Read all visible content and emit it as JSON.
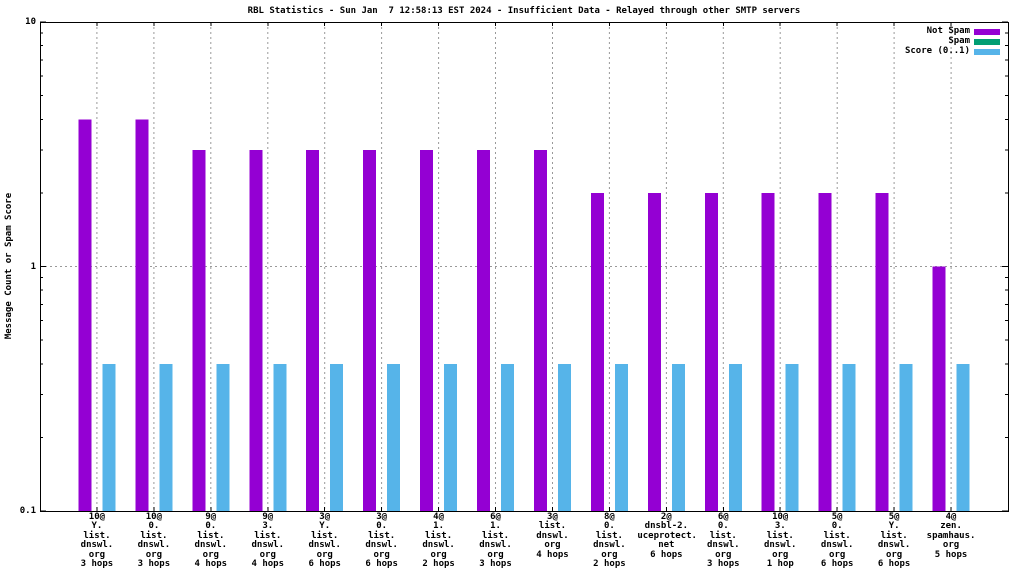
{
  "chart_data": {
    "type": "bar",
    "title": "RBL Statistics - Sun Jan  7 12:58:13 EST 2024 - Insufficient Data - Relayed through other SMTP servers",
    "ylabel": "Message Count or Spam Score",
    "xlabel": "",
    "yscale": "log",
    "ylim": [
      0.1,
      10
    ],
    "ytick_labels": [
      "0.1",
      "1",
      "10"
    ],
    "ytick_values": [
      0.1,
      1,
      10
    ],
    "grid": true,
    "grid_color": "#999999",
    "legend_position": "top-right-inside",
    "categories": [
      [
        "10@",
        "Y.",
        "list.",
        "dnswl.",
        "org",
        "3 hops"
      ],
      [
        "10@",
        "0.",
        "list.",
        "dnswl.",
        "org",
        "3 hops"
      ],
      [
        "9@",
        "0.",
        "list.",
        "dnswl.",
        "org",
        "4 hops"
      ],
      [
        "9@",
        "3.",
        "list.",
        "dnswl.",
        "org",
        "4 hops"
      ],
      [
        "3@",
        "Y.",
        "list.",
        "dnswl.",
        "org",
        "6 hops"
      ],
      [
        "3@",
        "0.",
        "list.",
        "dnswl.",
        "org",
        "6 hops"
      ],
      [
        "4@",
        "1.",
        "list.",
        "dnswl.",
        "org",
        "2 hops"
      ],
      [
        "6@",
        "1.",
        "list.",
        "dnswl.",
        "org",
        "3 hops"
      ],
      [
        "3@",
        "list.",
        "dnswl.",
        "org",
        "4 hops"
      ],
      [
        "8@",
        "0.",
        "list.",
        "dnswl.",
        "org",
        "2 hops"
      ],
      [
        "2@",
        "dnsbl-2.",
        "uceprotect.",
        "net",
        "6 hops"
      ],
      [
        "6@",
        "0.",
        "list.",
        "dnswl.",
        "org",
        "3 hops"
      ],
      [
        "10@",
        "3.",
        "list.",
        "dnswl.",
        "org",
        "1 hop"
      ],
      [
        "5@",
        "0.",
        "list.",
        "dnswl.",
        "org",
        "6 hops"
      ],
      [
        "5@",
        "Y.",
        "list.",
        "dnswl.",
        "org",
        "6 hops"
      ],
      [
        "4@",
        "zen.",
        "spamhaus.",
        "org",
        "5 hops"
      ]
    ],
    "series": [
      {
        "name": "Not Spam",
        "color": "#9400d3",
        "values": [
          4,
          4,
          3,
          3,
          3,
          3,
          3,
          3,
          3,
          2,
          2,
          2,
          2,
          2,
          2,
          1
        ]
      },
      {
        "name": "Spam",
        "color": "#009e73",
        "values": [
          0,
          0,
          0,
          0,
          0,
          0,
          0,
          0,
          0,
          0,
          0,
          0,
          0,
          0,
          0,
          0
        ]
      },
      {
        "name": "Score (0..1)",
        "color": "#56b4e9",
        "values": [
          0.4,
          0.4,
          0.4,
          0.4,
          0.4,
          0.4,
          0.4,
          0.4,
          0.4,
          0.4,
          0.4,
          0.4,
          0.4,
          0.4,
          0.4,
          0.4
        ]
      }
    ]
  }
}
